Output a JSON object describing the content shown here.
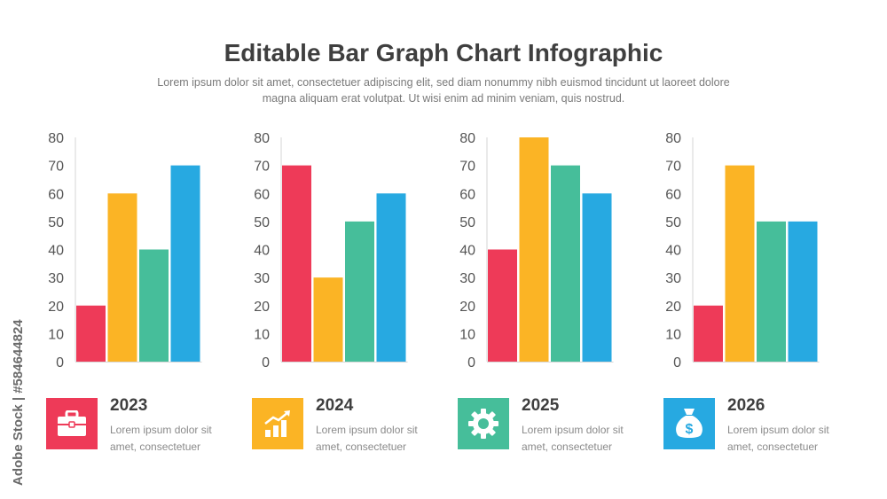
{
  "title": "Editable Bar Graph Chart Infographic",
  "subtitle": "Lorem ipsum dolor sit amet, consectetuer adipiscing elit, sed diam nonummy nibh euismod tincidunt ut laoreet dolore magna aliquam erat volutpat. Ut wisi enim ad minim veniam, quis nostrud.",
  "side_text": "Adobe Stock | #584644824",
  "colors": {
    "red": "#ee3a58",
    "yellow": "#fbb425",
    "green": "#46be9a",
    "blue": "#27a9e1"
  },
  "chart_data": [
    {
      "type": "bar",
      "title": "",
      "xlabel": "",
      "ylabel": "",
      "ylim": [
        0,
        80
      ],
      "yticks": [
        0,
        10,
        20,
        30,
        40,
        50,
        60,
        70,
        80
      ],
      "values": [
        20,
        60,
        40,
        70
      ],
      "colors": [
        "#ee3a58",
        "#fbb425",
        "#46be9a",
        "#27a9e1"
      ]
    },
    {
      "type": "bar",
      "title": "",
      "xlabel": "",
      "ylabel": "",
      "ylim": [
        0,
        80
      ],
      "yticks": [
        0,
        10,
        20,
        30,
        40,
        50,
        60,
        70,
        80
      ],
      "values": [
        70,
        30,
        50,
        60
      ],
      "colors": [
        "#ee3a58",
        "#fbb425",
        "#46be9a",
        "#27a9e1"
      ]
    },
    {
      "type": "bar",
      "title": "",
      "xlabel": "",
      "ylabel": "",
      "ylim": [
        0,
        80
      ],
      "yticks": [
        0,
        10,
        20,
        30,
        40,
        50,
        60,
        70,
        80
      ],
      "values": [
        40,
        80,
        70,
        60
      ],
      "colors": [
        "#ee3a58",
        "#fbb425",
        "#46be9a",
        "#27a9e1"
      ]
    },
    {
      "type": "bar",
      "title": "",
      "xlabel": "",
      "ylabel": "",
      "ylim": [
        0,
        80
      ],
      "yticks": [
        0,
        10,
        20,
        30,
        40,
        50,
        60,
        70,
        80
      ],
      "values": [
        20,
        70,
        50,
        50
      ],
      "colors": [
        "#ee3a58",
        "#fbb425",
        "#46be9a",
        "#27a9e1"
      ]
    }
  ],
  "legend": [
    {
      "year": "2023",
      "text": "Lorem ipsum dolor sit amet, consectetuer",
      "icon": "briefcase-icon",
      "color": "#ee3a58"
    },
    {
      "year": "2024",
      "text": "Lorem ipsum dolor sit amet, consectetuer",
      "icon": "growth-chart-icon",
      "color": "#fbb425"
    },
    {
      "year": "2025",
      "text": "Lorem ipsum dolor sit amet, consectetuer",
      "icon": "gear-icon",
      "color": "#46be9a"
    },
    {
      "year": "2026",
      "text": "Lorem ipsum dolor sit amet, consectetuer",
      "icon": "money-bag-icon",
      "color": "#27a9e1"
    }
  ]
}
